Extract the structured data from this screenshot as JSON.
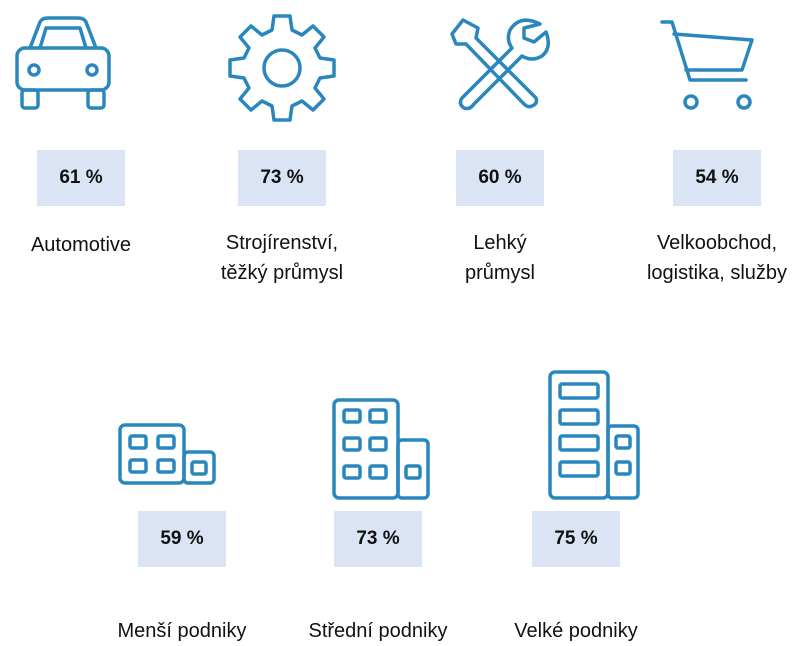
{
  "items": [
    {
      "value": "61 %",
      "label": [
        "Automotive"
      ]
    },
    {
      "value": "73 %",
      "label": [
        "Strojírenství,",
        "těžký průmysl"
      ]
    },
    {
      "value": "60 %",
      "label": [
        "Lehký",
        "průmysl"
      ]
    },
    {
      "value": "54 %",
      "label": [
        "Velkoobchod,",
        "logistika, služby"
      ]
    },
    {
      "value": "59 %",
      "label": [
        "Menší podniky"
      ]
    },
    {
      "value": "73 %",
      "label": [
        "Střední podniky"
      ]
    },
    {
      "value": "75 %",
      "label": [
        "Velké podniky"
      ]
    }
  ]
}
